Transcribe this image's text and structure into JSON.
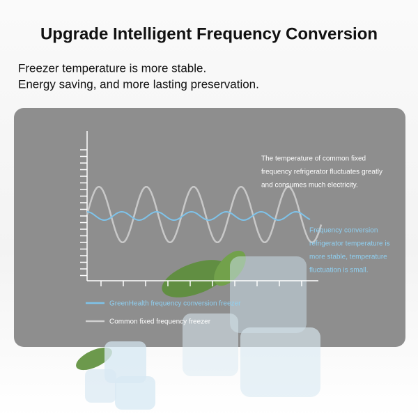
{
  "header": {
    "title": "Upgrade Intelligent Frequency Conversion",
    "lines": [
      "Freezer temperature is more stable.",
      "Energy saving, and more lasting preservation."
    ]
  },
  "annotations": {
    "common": [
      "The temperature of common fixed",
      "frequency refrigerator fluctuates greatly",
      "and consumes much electricity."
    ],
    "frequency": [
      "Frequency conversion",
      "refrigerator temperature is",
      "more stable, temperature",
      "fluctuation is small."
    ]
  },
  "legend": [
    "GreenHealth frequency conversion freezer",
    "Common fixed frequency freezer"
  ]
}
